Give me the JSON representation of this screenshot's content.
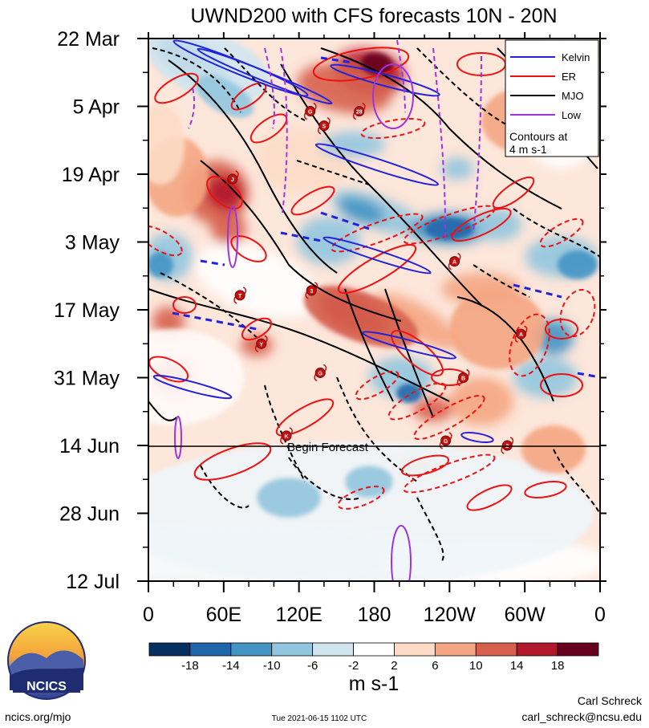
{
  "chart_data": {
    "type": "heatmap",
    "title": "UWND200 with CFS forecasts  10N - 20N",
    "x_ticks": [
      "0",
      "60E",
      "120E",
      "180",
      "120W",
      "60W",
      "0"
    ],
    "x_range_deg_east": [
      0,
      360
    ],
    "y_ticks": [
      "22 Mar",
      "5 Apr",
      "19 Apr",
      "3 May",
      "17 May",
      "31 May",
      "14 Jun",
      "28 Jun",
      "12 Jul"
    ],
    "time_range": [
      "2021-03-22",
      "2021-07-12"
    ],
    "forecast_start": "2021-06-14",
    "forecast_label": "Begin Forecast",
    "legend": [
      {
        "name": "Kelvin",
        "color": "#2222dd"
      },
      {
        "name": "ER",
        "color": "#ee1111"
      },
      {
        "name": "MJO",
        "color": "#000000"
      },
      {
        "name": "Low",
        "color": "#a033e0"
      }
    ],
    "legend_note": [
      "Contours at",
      "4 m s-1"
    ],
    "colorbar": {
      "ticks": [
        "-18",
        "-14",
        "-10",
        "-6",
        "-2",
        "2",
        "6",
        "10",
        "14",
        "18"
      ],
      "colors": [
        "#053061",
        "#2166ac",
        "#4393c3",
        "#92c5de",
        "#d1e5f0",
        "#ffffff",
        "#fddbc7",
        "#f4a582",
        "#d6604d",
        "#b2182b",
        "#67001f"
      ],
      "units": "m s-1"
    },
    "storms": [
      {
        "label": "J",
        "lon": 67,
        "date": "2021-04-20"
      },
      {
        "label": "G",
        "lon": 129,
        "date": "2021-04-06"
      },
      {
        "label": "S",
        "lon": 140,
        "date": "2021-04-09"
      },
      {
        "label": "28",
        "lon": 168,
        "date": "2021-04-06"
      },
      {
        "label": "T",
        "lon": 73,
        "date": "2021-05-14"
      },
      {
        "label": "3",
        "lon": 130,
        "date": "2021-05-13"
      },
      {
        "label": "Y",
        "lon": 90,
        "date": "2021-05-24"
      },
      {
        "label": "A",
        "lon": 244,
        "date": "2021-05-07"
      },
      {
        "label": "A",
        "lon": 297,
        "date": "2021-05-22"
      },
      {
        "label": "G",
        "lon": 137,
        "date": "2021-05-30"
      },
      {
        "label": "B",
        "lon": 251,
        "date": "2021-05-31"
      },
      {
        "label": "K",
        "lon": 110,
        "date": "2021-06-12"
      },
      {
        "label": "G",
        "lon": 237,
        "date": "2021-06-13"
      },
      {
        "label": "2",
        "lon": 286,
        "date": "2021-06-14"
      }
    ]
  },
  "footer": {
    "logo_text": "NCICS",
    "website": "ncics.org/mjo",
    "timestamp": "Tue 2021-06-15 1102 UTC",
    "author": "Carl Schreck",
    "email": "carl_schreck@ncsu.edu"
  }
}
